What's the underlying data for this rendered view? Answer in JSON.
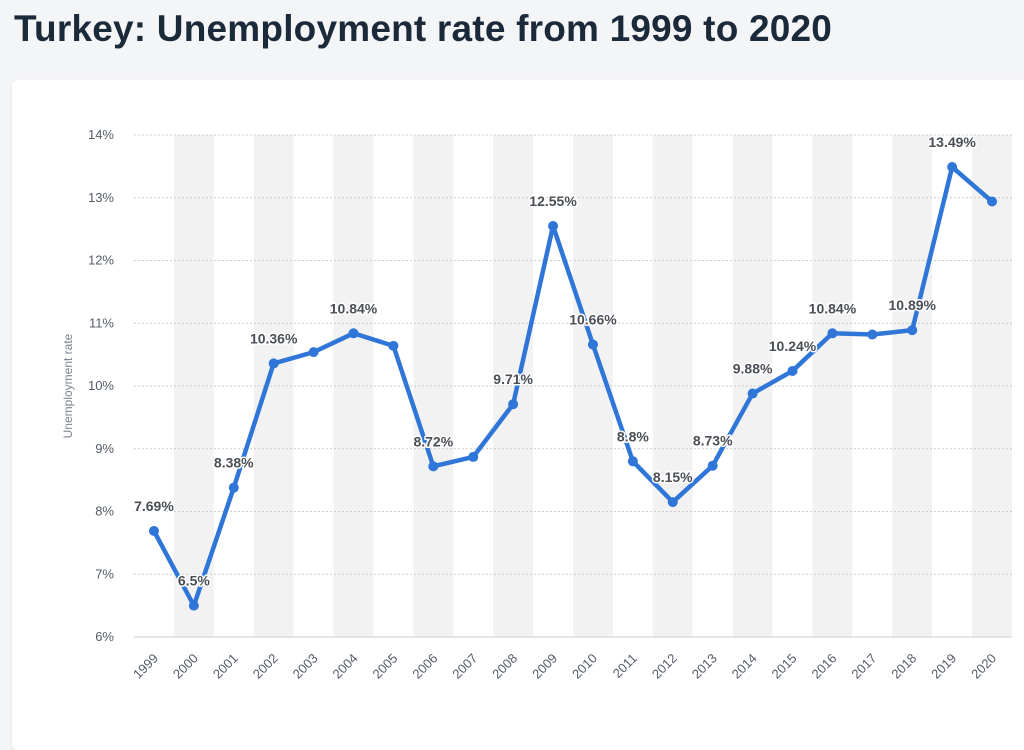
{
  "header": {
    "title": "Turkey: Unemployment rate from 1999 to 2020"
  },
  "colors": {
    "line": "#2f76d8",
    "band": "#f2f2f2",
    "grid": "#c9ccd0"
  },
  "chart_data": {
    "type": "line",
    "title": "Turkey: Unemployment rate from 1999 to 2020",
    "xlabel": "",
    "ylabel": "Unemployment rate",
    "ylim": [
      6,
      14
    ],
    "y_ticks": [
      "6%",
      "7%",
      "8%",
      "9%",
      "10%",
      "11%",
      "12%",
      "13%",
      "14%"
    ],
    "grid": true,
    "categories": [
      "1999",
      "2000",
      "2001",
      "2002",
      "2003",
      "2004",
      "2005",
      "2006",
      "2007",
      "2008",
      "2009",
      "2010",
      "2011",
      "2012",
      "2013",
      "2014",
      "2015",
      "2016",
      "2017",
      "2018",
      "2019",
      "2020"
    ],
    "series": [
      {
        "values": [
          7.69,
          6.5,
          8.38,
          10.36,
          10.54,
          10.84,
          10.64,
          8.72,
          8.87,
          9.71,
          12.55,
          10.66,
          8.8,
          8.15,
          8.73,
          9.88,
          10.24,
          10.84,
          10.82,
          10.89,
          13.49,
          12.94
        ],
        "labels": [
          "7.69%",
          "6.5%",
          "8.38%",
          "10.36%",
          "",
          "10.84%",
          "",
          "8.72%",
          "",
          "9.71%",
          "12.55%",
          "10.66%",
          "8.8%",
          "8.15%",
          "8.73%",
          "9.88%",
          "10.24%",
          "10.84%",
          "",
          "10.89%",
          "13.49%",
          ""
        ]
      }
    ]
  }
}
